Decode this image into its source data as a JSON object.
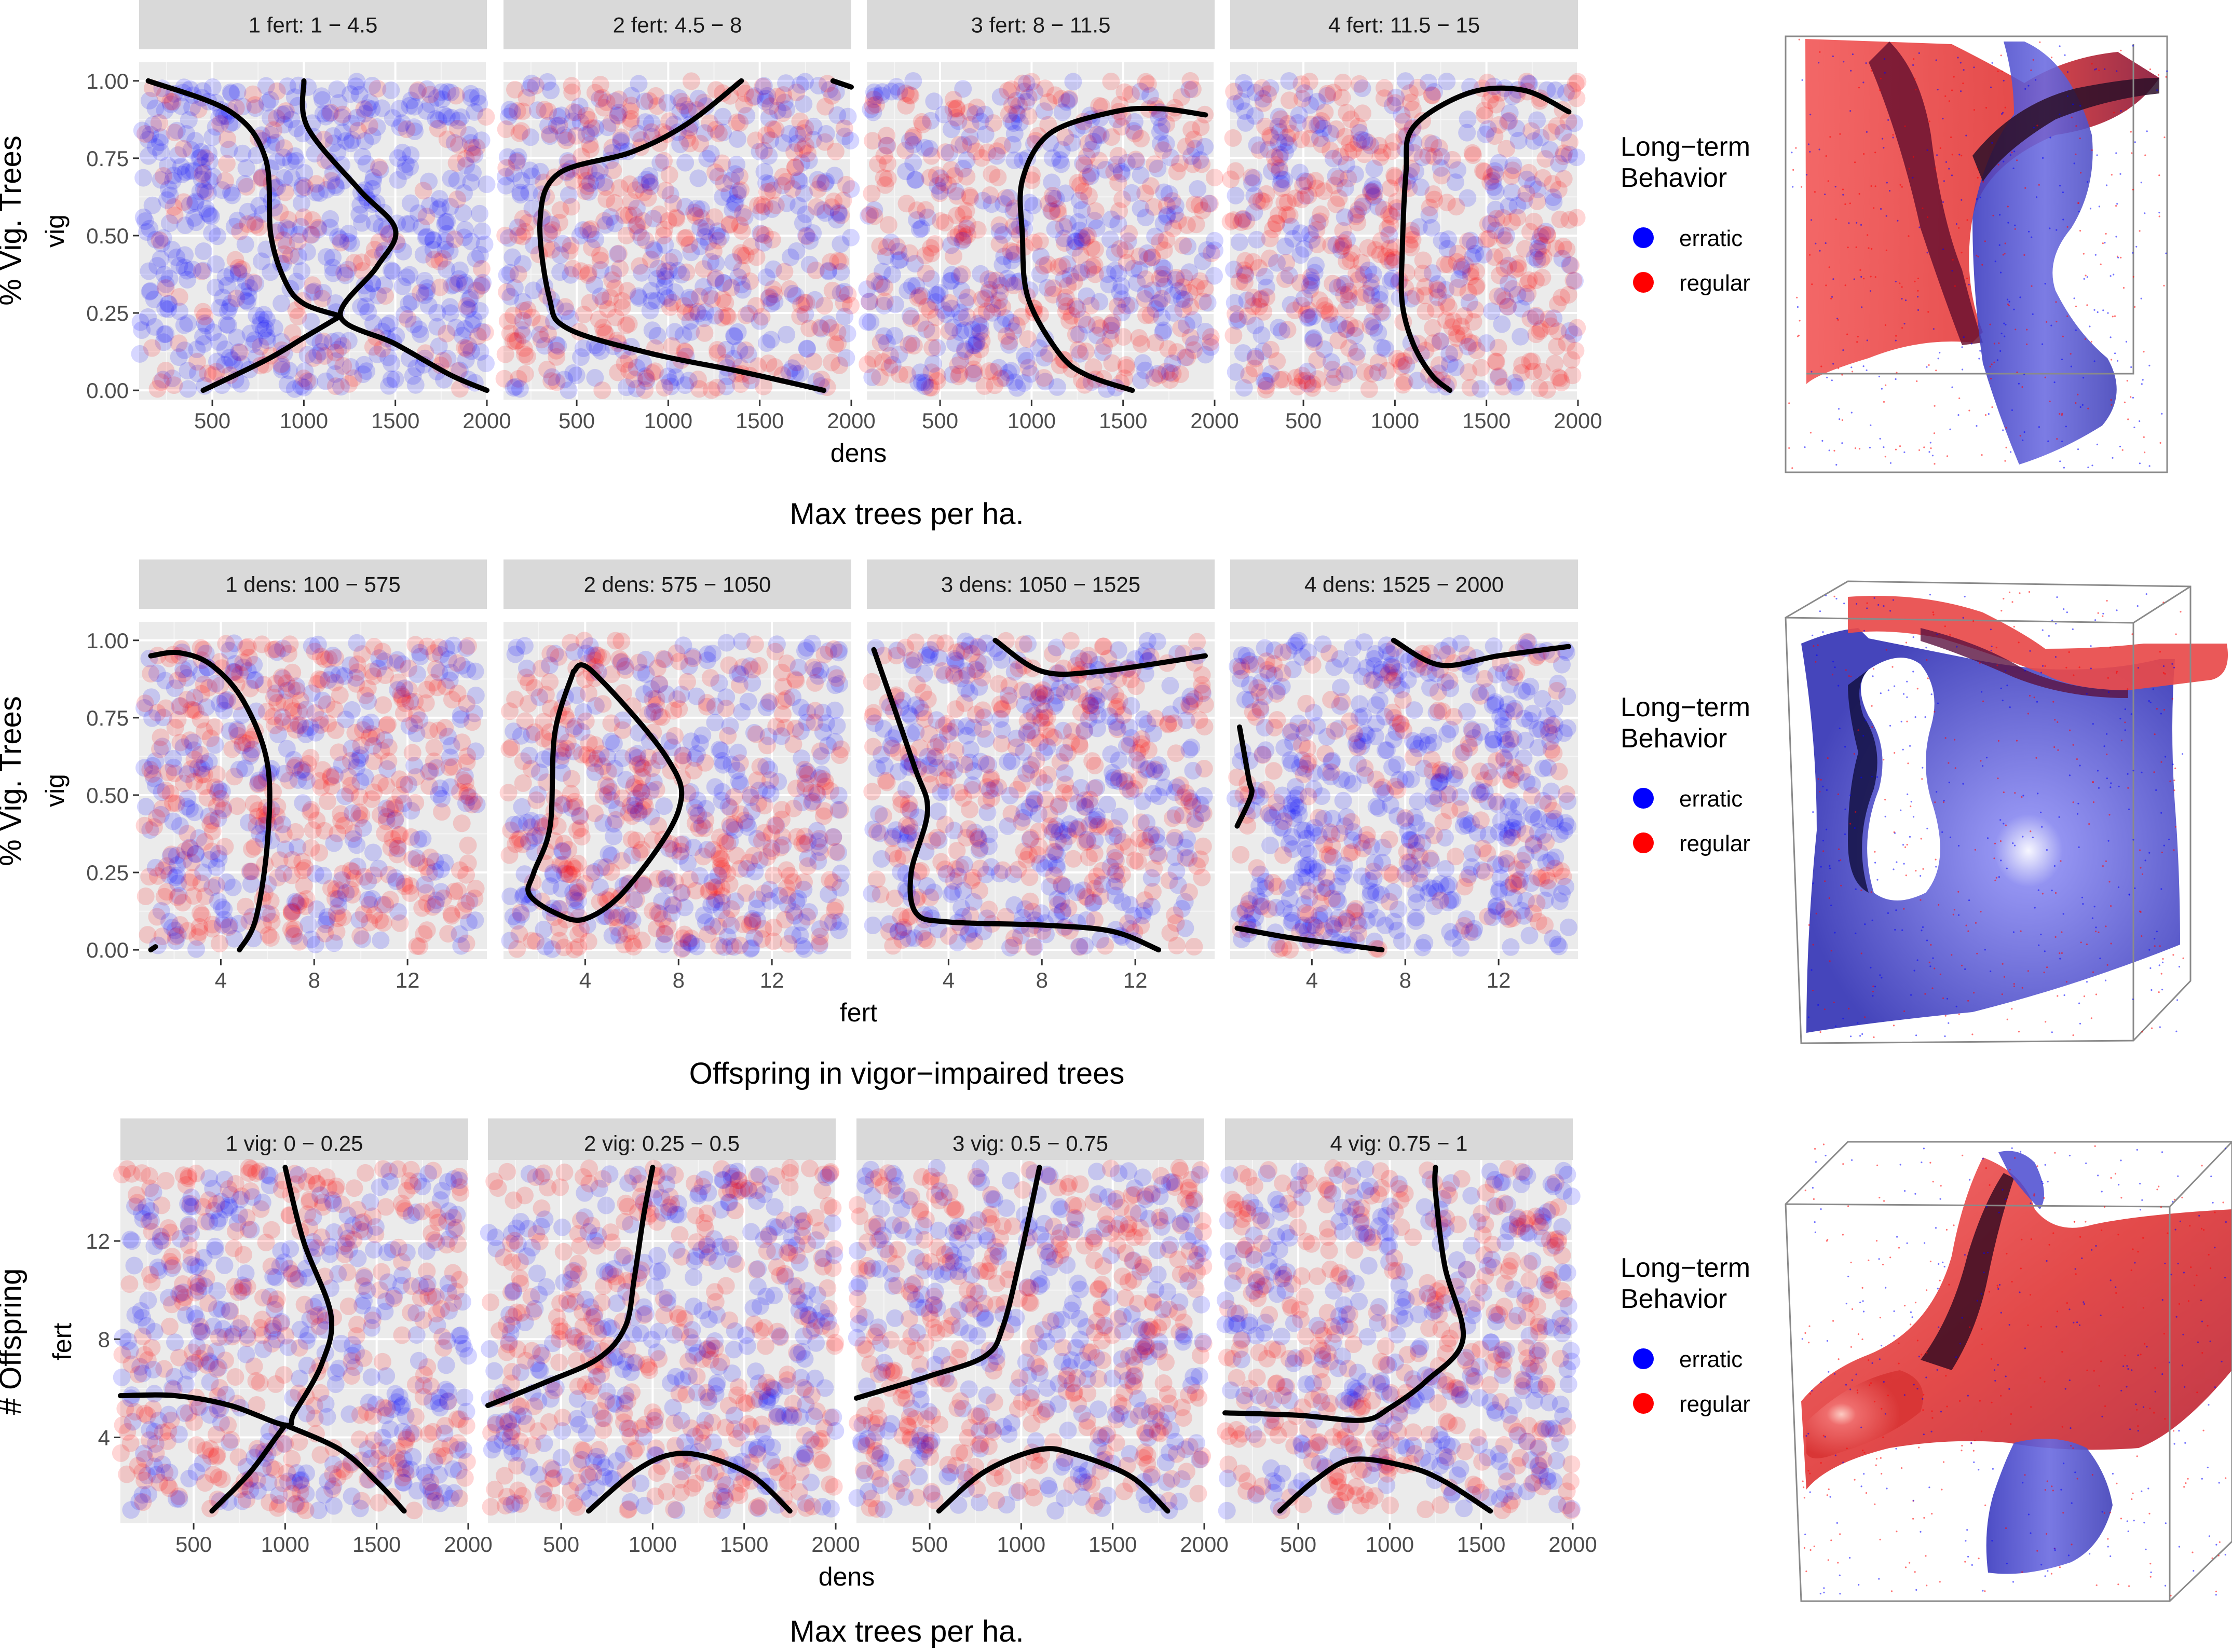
{
  "legend": {
    "title_line1": "Long−term",
    "title_line2": "Behavior",
    "entries": [
      {
        "label": "erratic",
        "color": "#0000ff"
      },
      {
        "label": "regular",
        "color": "#ff0000"
      }
    ]
  },
  "colors": {
    "erratic": "#0000ff",
    "regular": "#ff0000",
    "boundary": "#000000",
    "panel_background": "#ebebeb",
    "strip_background": "#d9d9d9"
  },
  "chart_data": [
    {
      "type": "scatter",
      "facet_by": "fert",
      "x_var": "dens",
      "y_var": "vig",
      "xlabel": "dens",
      "ylabel": "vig",
      "outer_ylabel": "% Vig. Trees",
      "caption": "Max trees per ha.",
      "xlim": [
        100,
        2000
      ],
      "ylim": [
        -0.03,
        1.06
      ],
      "x_ticks": [
        500,
        1000,
        1500,
        2000
      ],
      "x_tick_labels": [
        "500",
        "1000",
        "1500",
        "2000"
      ],
      "y_ticks": [
        0,
        0.25,
        0.5,
        0.75,
        1
      ],
      "y_tick_labels": [
        "0.00",
        "0.25",
        "0.50",
        "0.75",
        "1.00"
      ],
      "x_range_points": [
        100,
        2000
      ],
      "y_range_points": [
        0,
        1
      ],
      "points_per_panel": 700,
      "series": [
        {
          "name": "erratic"
        },
        {
          "name": "regular"
        }
      ],
      "panels": [
        {
          "label": "1 fert: 1 − 4.5",
          "regular_fraction": 0.22,
          "curves": [
            [
              [
                150,
                1.0
              ],
              [
                600,
                0.9
              ],
              [
                790,
                0.75
              ],
              [
                820,
                0.5
              ],
              [
                900,
                0.35
              ],
              [
                1000,
                0.28
              ],
              [
                1200,
                0.24
              ]
            ],
            [
              [
                1000,
                1.0
              ],
              [
                1020,
                0.85
              ],
              [
                1300,
                0.65
              ],
              [
                1500,
                0.52
              ],
              [
                1400,
                0.4
              ],
              [
                1200,
                0.24
              ],
              [
                1500,
                0.15
              ],
              [
                1800,
                0.05
              ],
              [
                2000,
                0.0
              ]
            ],
            [
              [
                450,
                0.0
              ],
              [
                800,
                0.1
              ],
              [
                1000,
                0.17
              ],
              [
                1200,
                0.24
              ]
            ]
          ]
        },
        {
          "label": "2 fert: 4.5 − 8",
          "regular_fraction": 0.5,
          "curves": [
            [
              [
                1400,
                1.0
              ],
              [
                1100,
                0.86
              ],
              [
                800,
                0.77
              ],
              [
                400,
                0.7
              ],
              [
                300,
                0.55
              ],
              [
                350,
                0.3
              ],
              [
                450,
                0.2
              ],
              [
                900,
                0.12
              ],
              [
                1400,
                0.06
              ],
              [
                1850,
                0.0
              ]
            ],
            [
              [
                1900,
                1.0
              ],
              [
                2000,
                0.98
              ]
            ]
          ]
        },
        {
          "label": "3 fert: 8 − 11.5",
          "regular_fraction": 0.55,
          "curves": [
            [
              [
                1950,
                0.89
              ],
              [
                1700,
                0.91
              ],
              [
                1450,
                0.9
              ],
              [
                1100,
                0.83
              ],
              [
                950,
                0.68
              ],
              [
                950,
                0.5
              ],
              [
                980,
                0.3
              ],
              [
                1150,
                0.12
              ],
              [
                1300,
                0.05
              ],
              [
                1550,
                0.0
              ]
            ]
          ]
        },
        {
          "label": "4 fert: 11.5 − 15",
          "regular_fraction": 0.58,
          "curves": [
            [
              [
                1950,
                0.9
              ],
              [
                1700,
                0.97
              ],
              [
                1400,
                0.96
              ],
              [
                1100,
                0.85
              ],
              [
                1060,
                0.7
              ],
              [
                1040,
                0.45
              ],
              [
                1040,
                0.28
              ],
              [
                1100,
                0.15
              ],
              [
                1200,
                0.05
              ],
              [
                1300,
                0.0
              ]
            ]
          ]
        }
      ]
    },
    {
      "type": "scatter",
      "facet_by": "dens",
      "x_var": "fert",
      "y_var": "vig",
      "xlabel": "fert",
      "ylabel": "vig",
      "outer_ylabel": "% Vig. Trees",
      "caption": "Offspring in vigor−impaired trees",
      "xlim": [
        0.5,
        15.4
      ],
      "ylim": [
        -0.03,
        1.06
      ],
      "x_ticks": [
        4,
        8,
        12
      ],
      "x_tick_labels": [
        "4",
        "8",
        "12"
      ],
      "y_ticks": [
        0,
        0.25,
        0.5,
        0.75,
        1
      ],
      "y_tick_labels": [
        "0.00",
        "0.25",
        "0.50",
        "0.75",
        "1.00"
      ],
      "x_range_points": [
        0.7,
        15
      ],
      "y_range_points": [
        0,
        1
      ],
      "points_per_panel": 700,
      "series": [
        {
          "name": "erratic"
        },
        {
          "name": "regular"
        }
      ],
      "panels": [
        {
          "label": "1 dens: 100 − 575",
          "regular_fraction": 0.6,
          "curves": [
            [
              [
                1.0,
                0.95
              ],
              [
                2.2,
                0.96
              ],
              [
                3.6,
                0.92
              ],
              [
                5,
                0.8
              ],
              [
                6,
                0.6
              ],
              [
                6,
                0.35
              ],
              [
                5.5,
                0.1
              ],
              [
                4.8,
                0.0
              ]
            ],
            [
              [
                1.0,
                0.0
              ],
              [
                1.2,
                0.01
              ]
            ]
          ]
        },
        {
          "label": "2 dens: 575 − 1050",
          "regular_fraction": 0.55,
          "curves": [
            [
              [
                3.5,
                0.9
              ],
              [
                2.7,
                0.7
              ],
              [
                2.5,
                0.4
              ],
              [
                1.8,
                0.25
              ],
              [
                1.6,
                0.18
              ],
              [
                2.7,
                0.12
              ],
              [
                4,
                0.1
              ],
              [
                5.8,
                0.2
              ],
              [
                8,
                0.45
              ],
              [
                7.5,
                0.62
              ],
              [
                4.3,
                0.9
              ],
              [
                3.5,
                0.9
              ]
            ]
          ]
        },
        {
          "label": "3 dens: 1050 − 1525",
          "regular_fraction": 0.5,
          "curves": [
            [
              [
                0.8,
                0.97
              ],
              [
                2.5,
                0.6
              ],
              [
                3.1,
                0.45
              ],
              [
                2.4,
                0.25
              ],
              [
                2.6,
                0.12
              ],
              [
                4,
                0.09
              ],
              [
                8,
                0.08
              ],
              [
                11,
                0.06
              ],
              [
                13,
                0.0
              ]
            ],
            [
              [
                6,
                1.0
              ],
              [
                8,
                0.9
              ],
              [
                10.5,
                0.9
              ],
              [
                15,
                0.95
              ]
            ]
          ]
        },
        {
          "label": "4 dens: 1525 − 2000",
          "regular_fraction": 0.3,
          "curves": [
            [
              [
                0.9,
                0.72
              ],
              [
                1.3,
                0.55
              ],
              [
                1.4,
                0.5
              ],
              [
                0.8,
                0.4
              ]
            ],
            [
              [
                0.8,
                0.07
              ],
              [
                3,
                0.04
              ],
              [
                5,
                0.02
              ],
              [
                7,
                0.0
              ]
            ],
            [
              [
                7.5,
                1.0
              ],
              [
                9.5,
                0.92
              ],
              [
                12,
                0.95
              ],
              [
                15,
                0.98
              ]
            ]
          ]
        }
      ]
    },
    {
      "type": "scatter",
      "facet_by": "vig",
      "x_var": "dens",
      "y_var": "fert",
      "xlabel": "dens",
      "ylabel": "fert",
      "outer_ylabel": "# Offspring",
      "caption": "Max trees per ha.",
      "xlim": [
        100,
        2000
      ],
      "ylim": [
        0.5,
        15.3
      ],
      "x_ticks": [
        500,
        1000,
        1500,
        2000
      ],
      "x_tick_labels": [
        "500",
        "1000",
        "1500",
        "2000"
      ],
      "y_ticks": [
        4,
        8,
        12
      ],
      "y_tick_labels": [
        "4",
        "8",
        "12"
      ],
      "x_range_points": [
        100,
        2000
      ],
      "y_range_points": [
        1,
        15
      ],
      "points_per_panel": 700,
      "series": [
        {
          "name": "erratic"
        },
        {
          "name": "regular"
        }
      ],
      "panels": [
        {
          "label": "1 vig: 0 − 0.25",
          "regular_fraction": 0.5,
          "curves": [
            [
              [
                100,
                5.7
              ],
              [
                400,
                5.7
              ],
              [
                700,
                5.3
              ],
              [
                1000,
                4.5
              ],
              [
                1050,
                5
              ],
              [
                1200,
                7
              ],
              [
                1250,
                9
              ],
              [
                1100,
                12
              ],
              [
                1000,
                15
              ]
            ],
            [
              [
                1000,
                4.5
              ],
              [
                1300,
                3.5
              ],
              [
                1500,
                2.2
              ],
              [
                1650,
                1.0
              ]
            ],
            [
              [
                600,
                1.0
              ],
              [
                800,
                2.5
              ],
              [
                950,
                4
              ],
              [
                1000,
                4.5
              ]
            ]
          ]
        },
        {
          "label": "2 vig: 0.25 − 0.5",
          "regular_fraction": 0.5,
          "curves": [
            [
              [
                100,
                5.3
              ],
              [
                400,
                6.2
              ],
              [
                700,
                7.2
              ],
              [
                850,
                8.5
              ],
              [
                900,
                10.5
              ],
              [
                950,
                13
              ],
              [
                1000,
                15
              ]
            ],
            [
              [
                650,
                1.0
              ],
              [
                900,
                2.6
              ],
              [
                1100,
                3.3
              ],
              [
                1300,
                3.2
              ],
              [
                1550,
                2.4
              ],
              [
                1750,
                1.0
              ]
            ]
          ]
        },
        {
          "label": "3 vig: 0.5 − 0.75",
          "regular_fraction": 0.55,
          "curves": [
            [
              [
                100,
                5.6
              ],
              [
                500,
                6.5
              ],
              [
                800,
                7.3
              ],
              [
                900,
                8.5
              ],
              [
                1000,
                11.5
              ],
              [
                1100,
                15
              ]
            ],
            [
              [
                550,
                1.0
              ],
              [
                800,
                2.6
              ],
              [
                1100,
                3.5
              ],
              [
                1300,
                3.3
              ],
              [
                1600,
                2.4
              ],
              [
                1800,
                1.0
              ]
            ]
          ]
        },
        {
          "label": "4 vig: 0.75 − 1",
          "regular_fraction": 0.5,
          "curves": [
            [
              [
                100,
                5.0
              ],
              [
                500,
                4.9
              ],
              [
                850,
                4.7
              ],
              [
                1000,
                5.2
              ],
              [
                1200,
                6.3
              ],
              [
                1400,
                8
              ],
              [
                1300,
                11
              ],
              [
                1250,
                14
              ],
              [
                1250,
                15
              ]
            ],
            [
              [
                400,
                1.0
              ],
              [
                600,
                2.3
              ],
              [
                800,
                3.1
              ],
              [
                1100,
                2.8
              ],
              [
                1300,
                2.2
              ],
              [
                1550,
                1.0
              ]
            ]
          ]
        }
      ]
    }
  ]
}
